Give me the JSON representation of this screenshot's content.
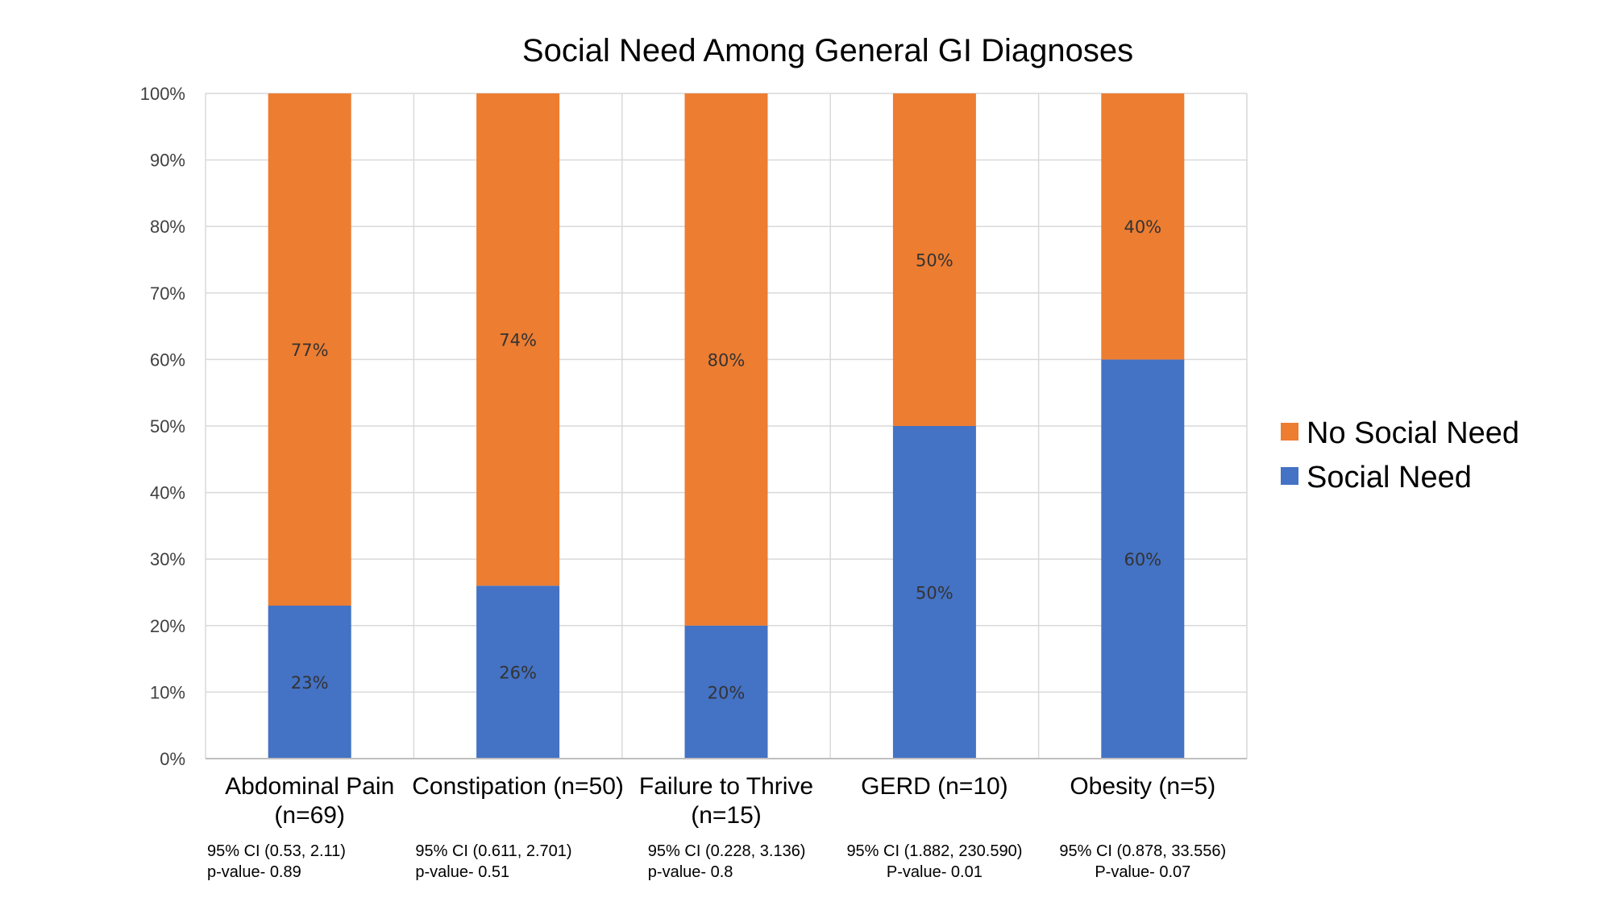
{
  "chart_data": {
    "type": "bar",
    "stacked": true,
    "title": "Social Need Among General GI Diagnoses",
    "categories": [
      [
        "Abdominal Pain",
        "(n=69)"
      ],
      [
        "Constipation (n=50)"
      ],
      [
        "Failure to Thrive",
        "(n=15)"
      ],
      [
        "GERD (n=10)"
      ],
      [
        "Obesity (n=5)"
      ]
    ],
    "series": [
      {
        "name": "Social Need",
        "color": "#4472C4",
        "values": [
          23,
          26,
          20,
          50,
          60
        ],
        "labels": [
          "23%",
          "26%",
          "20%",
          "50%",
          "60%"
        ]
      },
      {
        "name": "No Social Need",
        "color": "#ED7D31",
        "values": [
          77,
          74,
          80,
          50,
          40
        ],
        "labels": [
          "77%",
          "74%",
          "80%",
          "50%",
          "40%"
        ]
      }
    ],
    "ylim": [
      0,
      100
    ],
    "yticks": [
      "0%",
      "10%",
      "20%",
      "30%",
      "40%",
      "50%",
      "60%",
      "70%",
      "80%",
      "90%",
      "100%"
    ],
    "xlabel": "",
    "ylabel": "",
    "grid": true,
    "legend": {
      "position": "right",
      "entries": [
        {
          "label": "No Social Need",
          "color": "#ED7D31"
        },
        {
          "label": "Social Need",
          "color": "#4472C4"
        }
      ]
    },
    "annotations": [
      {
        "lines": [
          "95% CI (0.53, 2.11)",
          "p-value- 0.89"
        ],
        "align": "left"
      },
      {
        "lines": [
          "95% CI (0.611, 2.701)",
          "p-value- 0.51"
        ],
        "align": "left"
      },
      {
        "lines": [
          "95% CI (0.228, 3.136)",
          "p-value- 0.8"
        ],
        "align": "left"
      },
      {
        "lines": [
          "95% CI (1.882, 230.590)",
          "P-value- 0.01"
        ],
        "align": "center"
      },
      {
        "lines": [
          "95% CI (0.878, 33.556)",
          "P-value- 0.07"
        ],
        "align": "center"
      }
    ]
  }
}
